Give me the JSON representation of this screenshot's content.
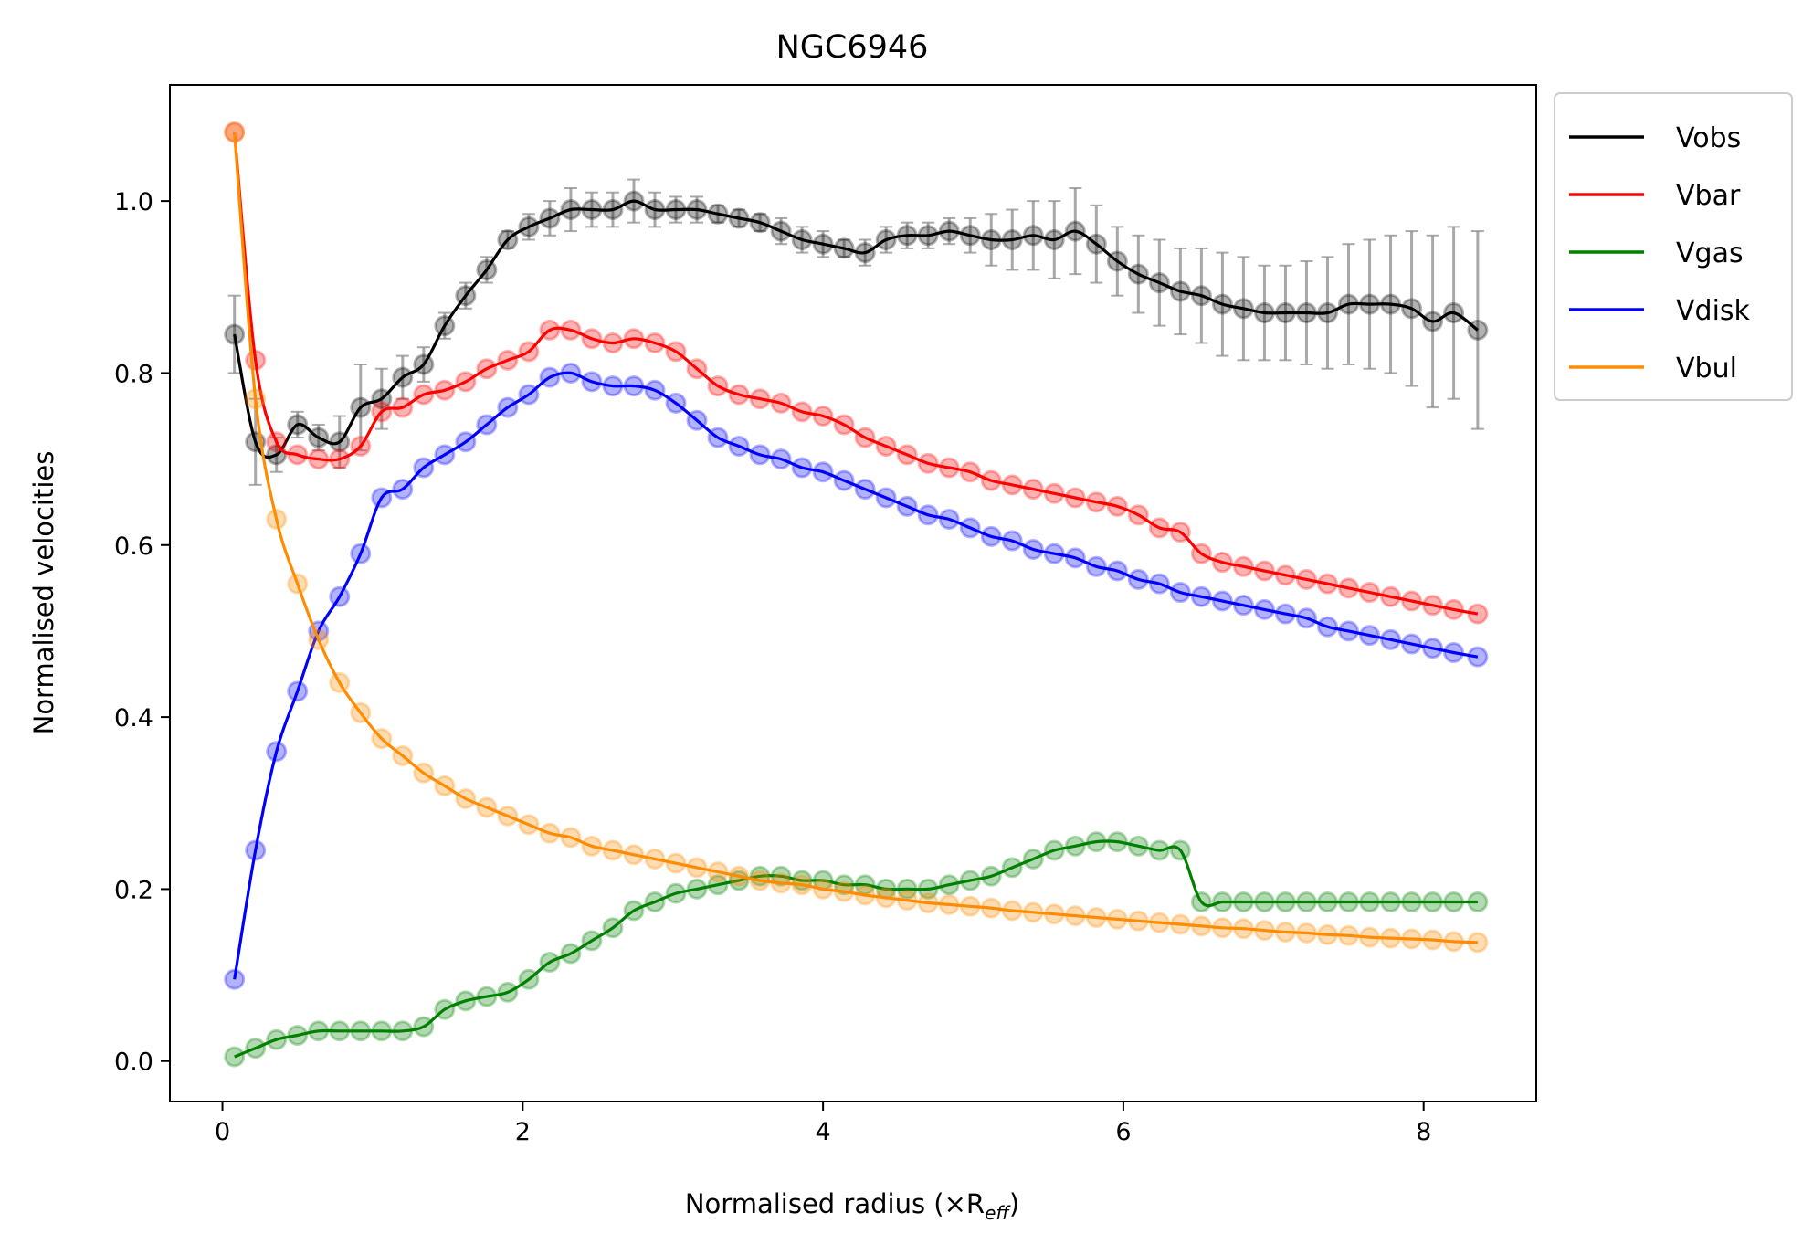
{
  "chart_data": {
    "type": "line",
    "title": "NGC6946",
    "xlabel": "Normalised radius (×R",
    "xlabel_sub": "eff",
    "xlabel_end": ")",
    "ylabel": "Normalised velocities",
    "xlim": [
      -0.35,
      8.75
    ],
    "ylim": [
      -0.047,
      1.135
    ],
    "xticks": [
      0,
      2,
      4,
      6,
      8
    ],
    "xtick_labels": [
      "0",
      "2",
      "4",
      "6",
      "8"
    ],
    "yticks": [
      0.0,
      0.2,
      0.4,
      0.6,
      0.8,
      1.0
    ],
    "ytick_labels": [
      "0.0",
      "0.2",
      "0.4",
      "0.6",
      "0.8",
      "1.0"
    ],
    "grid": false,
    "legend_position": "outside-top-right",
    "x": [
      0.08,
      0.22,
      0.36,
      0.5,
      0.64,
      0.78,
      0.92,
      1.06,
      1.2,
      1.34,
      1.48,
      1.62,
      1.76,
      1.9,
      2.04,
      2.18,
      2.32,
      2.46,
      2.6,
      2.74,
      2.88,
      3.02,
      3.16,
      3.3,
      3.44,
      3.58,
      3.72,
      3.86,
      4.0,
      4.14,
      4.28,
      4.42,
      4.56,
      4.7,
      4.84,
      4.98,
      5.12,
      5.26,
      5.4,
      5.54,
      5.68,
      5.82,
      5.96,
      6.1,
      6.24,
      6.38,
      6.52,
      6.66,
      6.8,
      6.94,
      7.08,
      7.22,
      7.36,
      7.5,
      7.64,
      7.78,
      7.92,
      8.06,
      8.2,
      8.36
    ],
    "series": [
      {
        "name": "Vobs",
        "color": "#000000",
        "values": [
          0.845,
          0.72,
          0.705,
          0.74,
          0.725,
          0.72,
          0.76,
          0.77,
          0.795,
          0.81,
          0.855,
          0.89,
          0.92,
          0.955,
          0.97,
          0.98,
          0.99,
          0.99,
          0.99,
          1.0,
          0.99,
          0.99,
          0.99,
          0.985,
          0.98,
          0.975,
          0.965,
          0.955,
          0.95,
          0.945,
          0.94,
          0.955,
          0.96,
          0.96,
          0.965,
          0.96,
          0.955,
          0.955,
          0.96,
          0.955,
          0.965,
          0.95,
          0.93,
          0.915,
          0.905,
          0.895,
          0.89,
          0.88,
          0.875,
          0.87,
          0.87,
          0.87,
          0.87,
          0.88,
          0.88,
          0.88,
          0.875,
          0.86,
          0.87,
          0.85
        ],
        "errors": [
          0.045,
          0.05,
          0.02,
          0.015,
          0.015,
          0.03,
          0.05,
          0.035,
          0.025,
          0.02,
          0.015,
          0.015,
          0.015,
          0.01,
          0.015,
          0.02,
          0.025,
          0.02,
          0.02,
          0.025,
          0.02,
          0.015,
          0.015,
          0.01,
          0.01,
          0.01,
          0.015,
          0.015,
          0.015,
          0.01,
          0.015,
          0.015,
          0.015,
          0.015,
          0.015,
          0.02,
          0.03,
          0.035,
          0.04,
          0.045,
          0.05,
          0.045,
          0.04,
          0.045,
          0.05,
          0.05,
          0.055,
          0.06,
          0.06,
          0.055,
          0.055,
          0.06,
          0.065,
          0.07,
          0.075,
          0.08,
          0.09,
          0.1,
          0.1,
          0.115
        ]
      },
      {
        "name": "Vbar",
        "color": "#ff0000",
        "values": [
          1.08,
          0.815,
          0.72,
          0.705,
          0.7,
          0.7,
          0.715,
          0.755,
          0.76,
          0.775,
          0.78,
          0.79,
          0.805,
          0.815,
          0.825,
          0.85,
          0.85,
          0.84,
          0.835,
          0.84,
          0.835,
          0.825,
          0.805,
          0.785,
          0.775,
          0.77,
          0.765,
          0.755,
          0.75,
          0.74,
          0.725,
          0.715,
          0.705,
          0.695,
          0.69,
          0.685,
          0.675,
          0.67,
          0.665,
          0.66,
          0.655,
          0.65,
          0.645,
          0.635,
          0.62,
          0.615,
          0.59,
          0.58,
          0.575,
          0.57,
          0.565,
          0.56,
          0.555,
          0.55,
          0.545,
          0.54,
          0.535,
          0.53,
          0.525,
          0.52
        ]
      },
      {
        "name": "Vgas",
        "color": "#008000",
        "values": [
          0.005,
          0.015,
          0.025,
          0.03,
          0.035,
          0.035,
          0.035,
          0.035,
          0.035,
          0.04,
          0.06,
          0.07,
          0.075,
          0.08,
          0.095,
          0.115,
          0.125,
          0.14,
          0.155,
          0.175,
          0.185,
          0.195,
          0.2,
          0.205,
          0.21,
          0.215,
          0.215,
          0.21,
          0.21,
          0.205,
          0.205,
          0.2,
          0.2,
          0.2,
          0.205,
          0.21,
          0.215,
          0.225,
          0.235,
          0.245,
          0.25,
          0.255,
          0.255,
          0.25,
          0.245,
          0.245,
          0.185,
          0.185,
          0.185,
          0.185,
          0.185,
          0.185,
          0.185,
          0.185,
          0.185,
          0.185,
          0.185,
          0.185,
          0.185,
          0.185
        ]
      },
      {
        "name": "Vdisk",
        "color": "#0000ff",
        "values": [
          0.095,
          0.245,
          0.36,
          0.43,
          0.5,
          0.54,
          0.59,
          0.655,
          0.665,
          0.69,
          0.705,
          0.72,
          0.74,
          0.76,
          0.775,
          0.795,
          0.8,
          0.79,
          0.785,
          0.785,
          0.78,
          0.765,
          0.745,
          0.725,
          0.715,
          0.705,
          0.7,
          0.69,
          0.685,
          0.675,
          0.665,
          0.655,
          0.645,
          0.635,
          0.63,
          0.62,
          0.61,
          0.605,
          0.595,
          0.59,
          0.585,
          0.575,
          0.57,
          0.56,
          0.555,
          0.545,
          0.54,
          0.535,
          0.53,
          0.525,
          0.52,
          0.515,
          0.505,
          0.5,
          0.495,
          0.49,
          0.485,
          0.48,
          0.475,
          0.47
        ]
      },
      {
        "name": "Vbul",
        "color": "#ff8c00",
        "values": [
          1.08,
          0.77,
          0.63,
          0.555,
          0.49,
          0.44,
          0.405,
          0.375,
          0.355,
          0.335,
          0.32,
          0.305,
          0.295,
          0.285,
          0.275,
          0.265,
          0.26,
          0.25,
          0.245,
          0.24,
          0.235,
          0.23,
          0.225,
          0.22,
          0.215,
          0.21,
          0.207,
          0.205,
          0.2,
          0.197,
          0.193,
          0.19,
          0.187,
          0.184,
          0.182,
          0.18,
          0.178,
          0.175,
          0.173,
          0.171,
          0.169,
          0.167,
          0.165,
          0.163,
          0.161,
          0.159,
          0.157,
          0.155,
          0.154,
          0.152,
          0.15,
          0.149,
          0.147,
          0.146,
          0.144,
          0.143,
          0.142,
          0.141,
          0.139,
          0.138
        ]
      }
    ]
  }
}
